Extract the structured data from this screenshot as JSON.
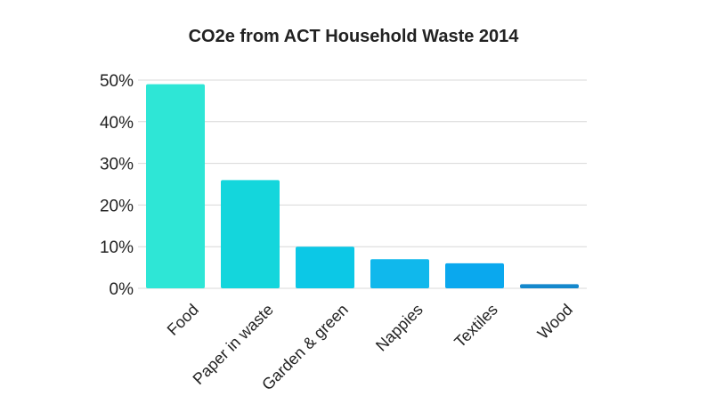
{
  "chart_data": {
    "type": "bar",
    "title": "CO2e from ACT Household Waste 2014",
    "xlabel": "",
    "ylabel": "",
    "categories": [
      "Food",
      "Paper in waste",
      "Garden & green",
      "Nappies",
      "Textiles",
      "Wood"
    ],
    "values": [
      49,
      26,
      10,
      7,
      6,
      1
    ],
    "colors": [
      "#2ee6d6",
      "#14d6dc",
      "#0cc8e6",
      "#10b8ec",
      "#0aa8ee",
      "#1488cc"
    ],
    "ylim": [
      0,
      50
    ],
    "yticks": [
      "0%",
      "10%",
      "20%",
      "30%",
      "40%",
      "50%"
    ],
    "grid": true,
    "legend": "none"
  }
}
